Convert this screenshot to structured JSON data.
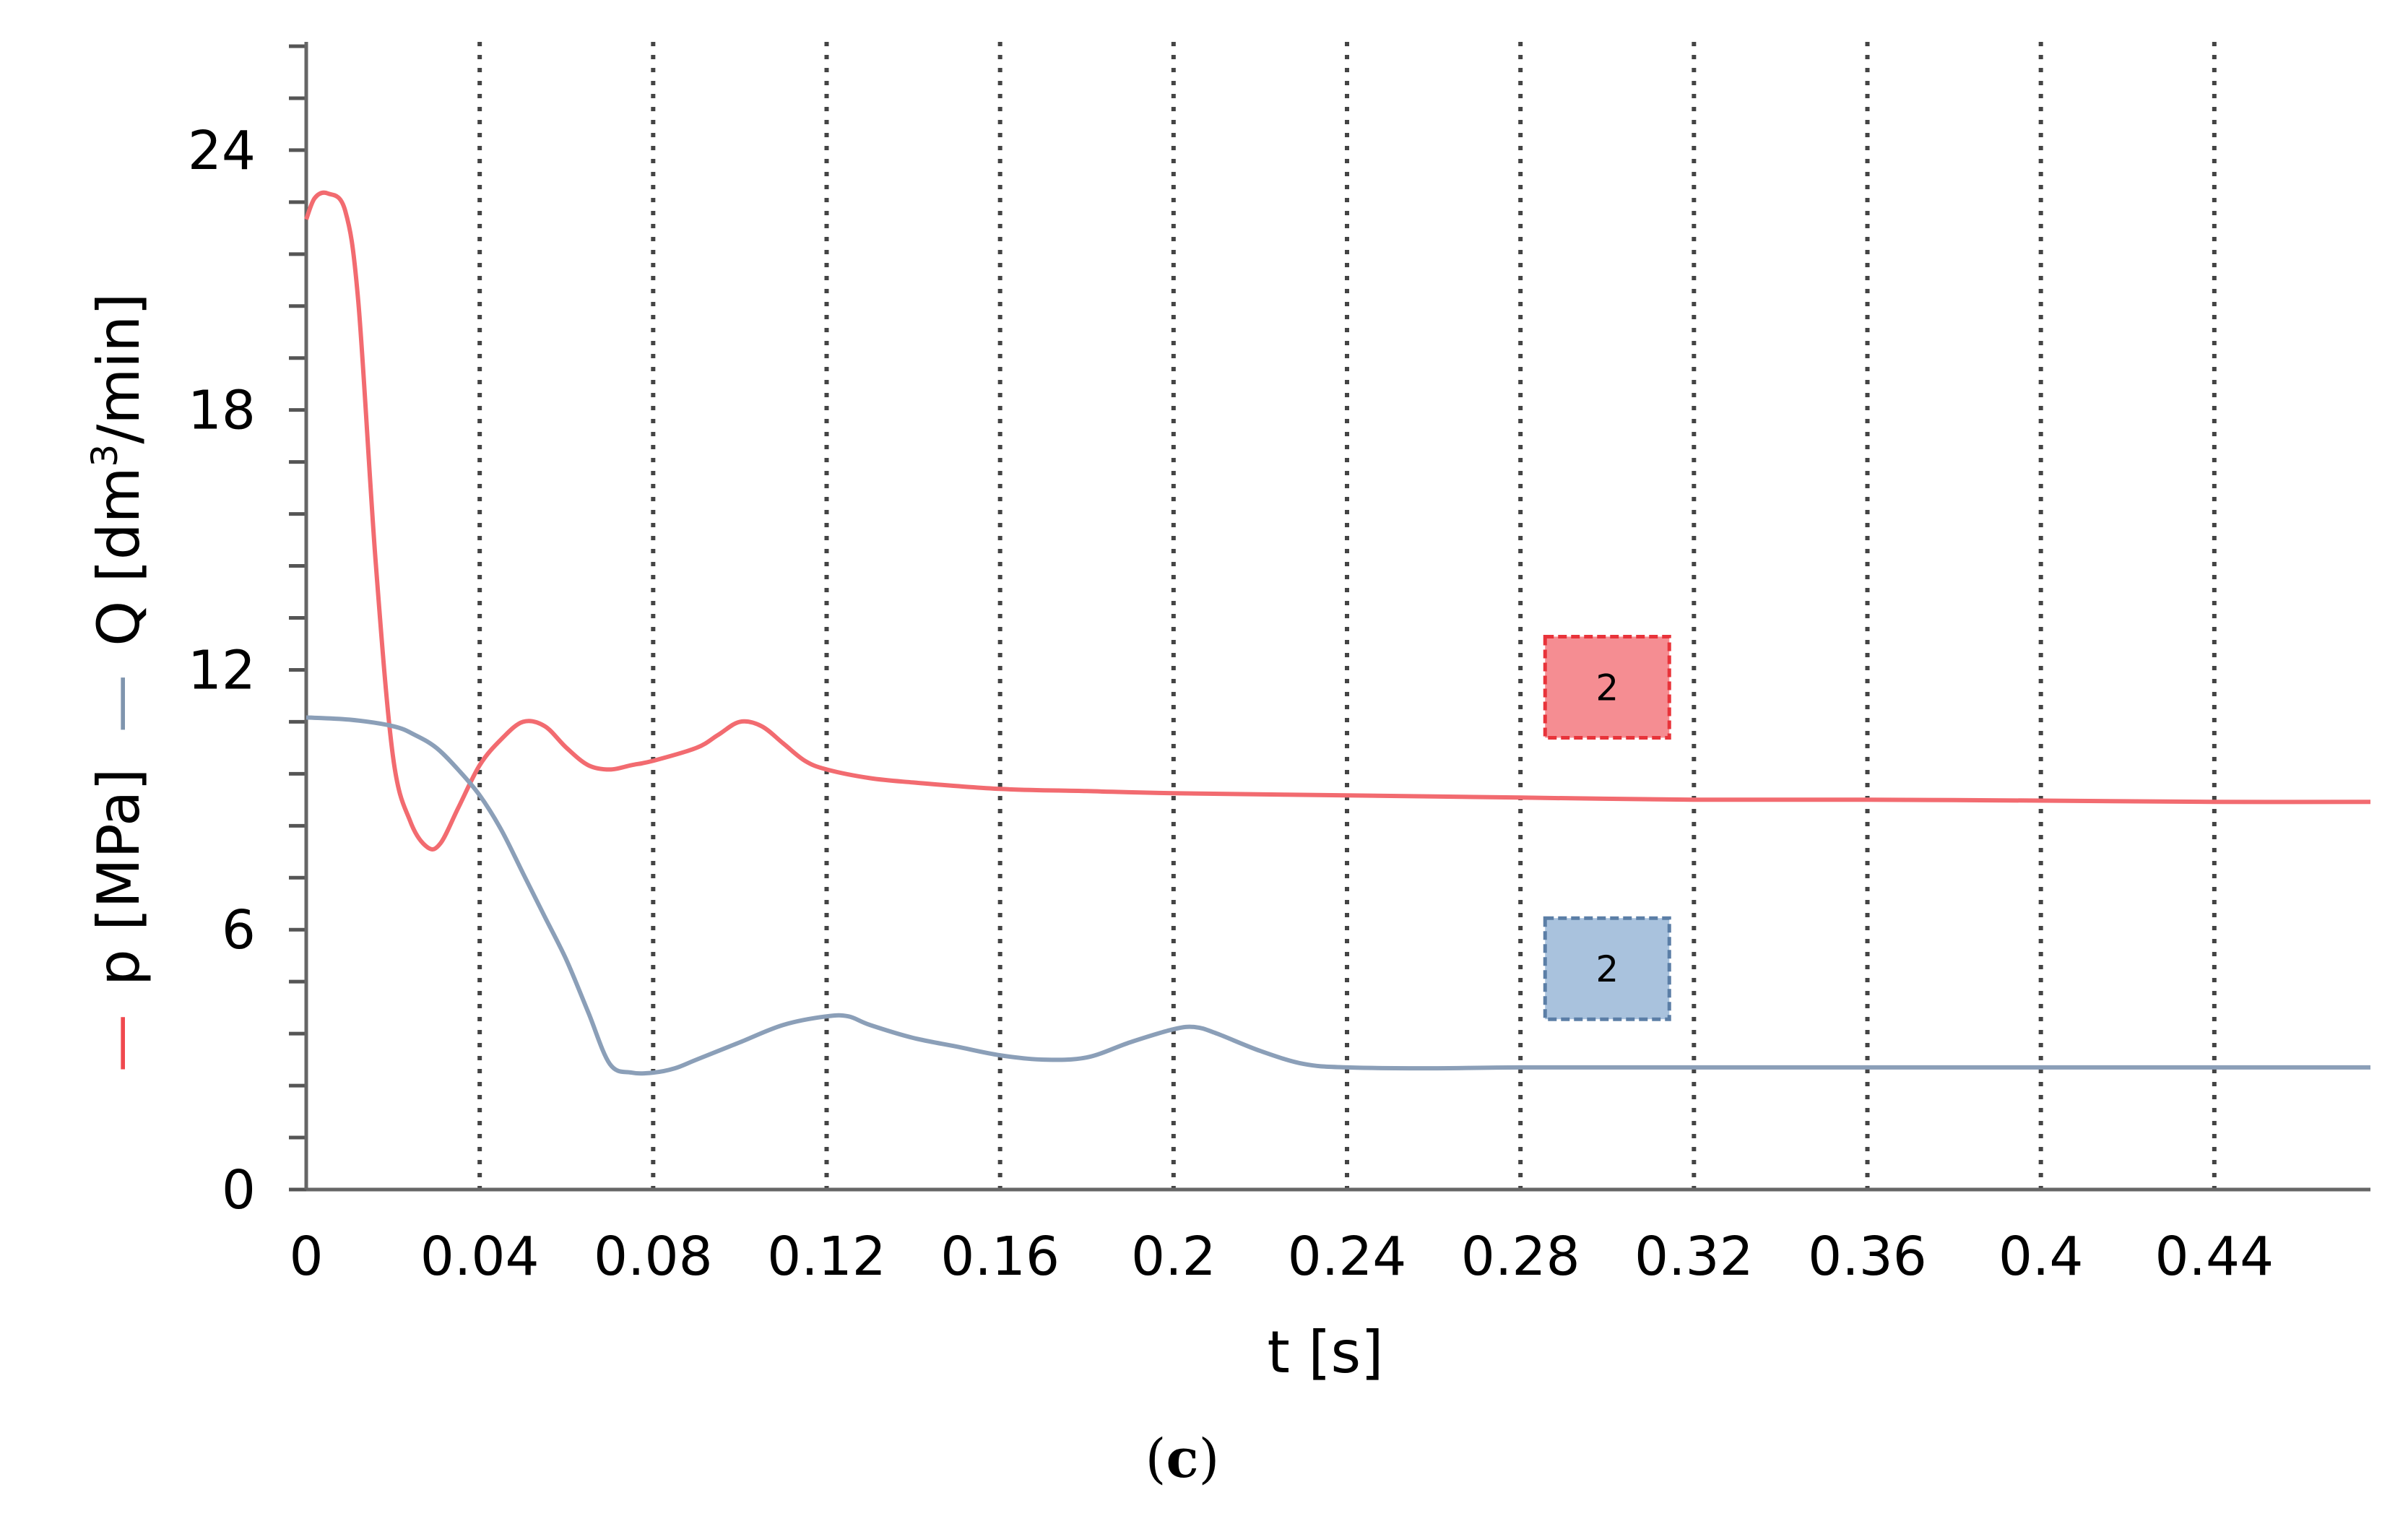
{
  "chart_data": {
    "type": "line",
    "xlabel": "t [s]",
    "xlim": [
      0,
      0.476
    ],
    "ylim": [
      0,
      26.5
    ],
    "x_ticks": [
      0,
      0.04,
      0.08,
      0.12,
      0.16,
      0.2,
      0.24,
      0.28,
      0.32,
      0.36,
      0.4,
      0.44
    ],
    "x_tick_labels": [
      "0",
      "0.04",
      "0.08",
      "0.12",
      "0.16",
      "0.2",
      "0.24",
      "0.28",
      "0.32",
      "0.36",
      "0.4",
      "0.44"
    ],
    "y_ticks": [
      0,
      6,
      12,
      18,
      24
    ],
    "y_tick_labels": [
      "0",
      "6",
      "12",
      "18",
      "24"
    ],
    "y_minor_step": 1.2,
    "grid": "vertical dotted",
    "ylabel": {
      "p_dash": "—",
      "p_text": "p [MPa]",
      "q_dash": "—",
      "q_text_before": "Q [dm",
      "q_sup": "3",
      "q_text_after": "/min]",
      "p_color": "#f0494f",
      "q_color": "#7f95ae"
    },
    "series": [
      {
        "key": "p",
        "color": "#f26b70",
        "x": [
          0,
          0.002,
          0.005,
          0.009,
          0.012,
          0.016,
          0.02,
          0.024,
          0.028,
          0.031,
          0.035,
          0.04,
          0.045,
          0.05,
          0.055,
          0.06,
          0.065,
          0.07,
          0.075,
          0.08,
          0.09,
          0.095,
          0.1,
          0.105,
          0.11,
          0.115,
          0.12,
          0.13,
          0.14,
          0.16,
          0.18,
          0.2,
          0.24,
          0.28,
          0.32,
          0.36,
          0.4,
          0.44,
          0.476
        ],
        "y": [
          22.4,
          22.9,
          23.0,
          22.6,
          20.5,
          14.5,
          10.0,
          8.5,
          7.9,
          8.0,
          8.8,
          9.8,
          10.4,
          10.8,
          10.7,
          10.2,
          9.8,
          9.7,
          9.8,
          9.9,
          10.2,
          10.5,
          10.8,
          10.7,
          10.3,
          9.9,
          9.7,
          9.5,
          9.4,
          9.25,
          9.2,
          9.15,
          9.1,
          9.05,
          9.0,
          9.0,
          8.98,
          8.95,
          8.95
        ]
      },
      {
        "key": "Q",
        "color": "#8b9fb8",
        "x": [
          0,
          0.01,
          0.02,
          0.025,
          0.03,
          0.035,
          0.04,
          0.045,
          0.05,
          0.055,
          0.06,
          0.065,
          0.07,
          0.075,
          0.08,
          0.085,
          0.09,
          0.1,
          0.11,
          0.12,
          0.125,
          0.13,
          0.14,
          0.15,
          0.16,
          0.17,
          0.18,
          0.19,
          0.2,
          0.205,
          0.21,
          0.22,
          0.23,
          0.24,
          0.26,
          0.28,
          0.32,
          0.36,
          0.4,
          0.44,
          0.476
        ],
        "y": [
          10.9,
          10.85,
          10.7,
          10.5,
          10.2,
          9.7,
          9.1,
          8.3,
          7.3,
          6.3,
          5.3,
          4.1,
          2.9,
          2.7,
          2.7,
          2.8,
          3.0,
          3.4,
          3.8,
          4.0,
          4.0,
          3.8,
          3.5,
          3.3,
          3.1,
          3.0,
          3.05,
          3.4,
          3.7,
          3.75,
          3.6,
          3.2,
          2.9,
          2.82,
          2.8,
          2.82,
          2.82,
          2.82,
          2.82,
          2.82,
          2.82
        ]
      }
    ],
    "markers": [
      {
        "key": "p",
        "label": "2",
        "fill": "#f58d92",
        "stroke": "#e8333a",
        "x": 0.3,
        "y": 11.6
      },
      {
        "key": "Q",
        "label": "2",
        "fill": "#a9c2dd",
        "stroke": "#5b7ea6",
        "x": 0.3,
        "y": 5.1
      }
    ]
  },
  "caption": {
    "open": "(",
    "letter": "c",
    "close": ")"
  }
}
